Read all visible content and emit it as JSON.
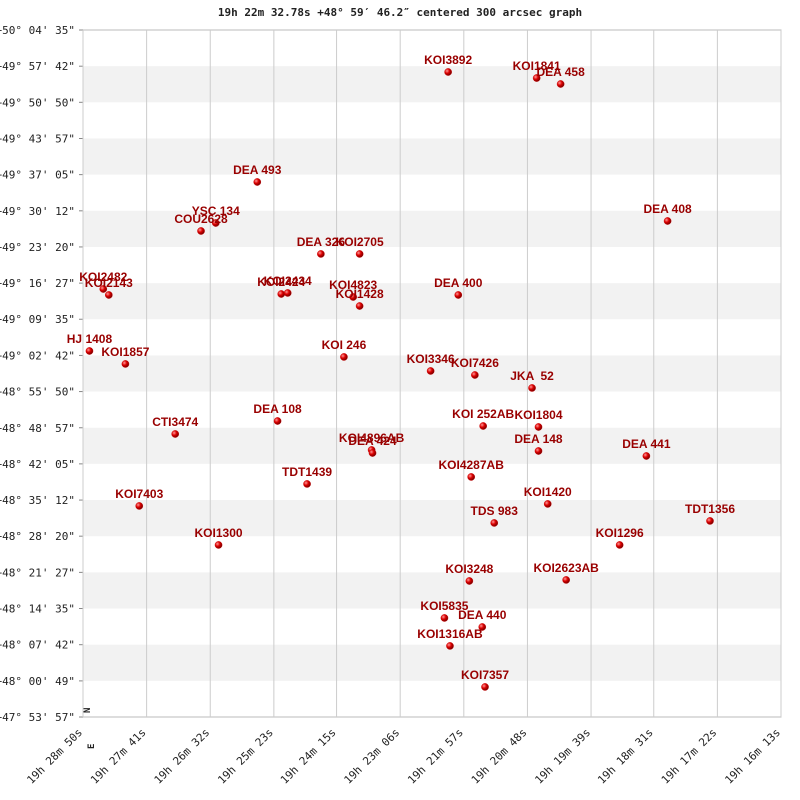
{
  "chart_data": {
    "type": "scatter",
    "title": "19h 22m 32.78s +48° 59′ 46.2″ centered 300 arcsec graph",
    "color": "#cc0000",
    "label_color": "#990000",
    "labels": [
      "KOI3892",
      "KOI1841",
      "DEA 458",
      "DEA 493",
      "YSC 134",
      "COU2628",
      "DEA 408",
      "DEA 326",
      "KOI2705",
      "KOI2482",
      "KOI2143",
      "KOI2424",
      "KOI2434",
      "KOI4823",
      "KOI1428",
      "DEA 400",
      "HJ 1408",
      "KOI1857",
      "KOI 246",
      "KOI3346",
      "KOI7426",
      "JKA  52",
      "DEA 108",
      "CTI3474",
      "KOI 252AB",
      "KOI1804",
      "KOI4896AB",
      "DEA 424",
      "DEA 148",
      "DEA 441",
      "TDT1439",
      "KOI4287AB",
      "KOI1420",
      "KOI7403",
      "TDS 983",
      "TDT1356",
      "KOI1300",
      "KOI1296",
      "KOI3248",
      "KOI2623AB",
      "KOI5835",
      "DEA 440",
      "KOI1316AB",
      "KOI7357"
    ],
    "x": [
      69334,
      69238,
      69212,
      69541,
      69586,
      69602,
      69096,
      69472,
      69430,
      69708,
      69702,
      69515,
      69508,
      69437,
      69430,
      69323,
      69723,
      69684,
      69447,
      69353,
      69305,
      69243,
      69519,
      69630,
      69296,
      69236,
      69417,
      69416,
      69236,
      69119,
      69487,
      69309,
      69226,
      69669,
      69284,
      69050,
      69583,
      69148,
      69311,
      69206,
      69338,
      69297,
      69332,
      69294
    ],
    "values": [
      179796,
      179727,
      179659,
      178541,
      178073,
      177982,
      178096,
      177720,
      177720,
      177320,
      177252,
      177263,
      177275,
      177229,
      177126,
      177252,
      176613,
      176465,
      176545,
      176385,
      176339,
      176191,
      175814,
      175666,
      175757,
      175746,
      175484,
      175449,
      175472,
      175415,
      175096,
      175176,
      174868,
      174845,
      174651,
      174674,
      174400,
      174400,
      173989,
      174001,
      173567,
      173464,
      173248,
      172780
    ],
    "xlim": [
      69730,
      68973
    ],
    "xticks": [
      {
        "value": 69730,
        "label": "19h 28m 50s"
      },
      {
        "value": 69661,
        "label": "19h 27m 41s"
      },
      {
        "value": 69592,
        "label": "19h 26m 32s"
      },
      {
        "value": 69523,
        "label": "19h 25m 23s"
      },
      {
        "value": 69455,
        "label": "19h 24m 15s"
      },
      {
        "value": 69386,
        "label": "19h 23m 06s"
      },
      {
        "value": 69317,
        "label": "19h 21m 57s"
      },
      {
        "value": 69248,
        "label": "19h 20m 48s"
      },
      {
        "value": 69179,
        "label": "19h 19m 39s"
      },
      {
        "value": 69111,
        "label": "19h 18m 31s"
      },
      {
        "value": 69042,
        "label": "19h 17m 22s"
      },
      {
        "value": 68973,
        "label": "19h 16m 13s"
      }
    ],
    "ylim": [
      172437,
      180275
    ],
    "yticks": [
      {
        "value": 180275,
        "label": "+50° 04' 35\""
      },
      {
        "value": 179862,
        "label": "+49° 57' 42\""
      },
      {
        "value": 179450,
        "label": "+49° 50' 50\""
      },
      {
        "value": 179037,
        "label": "+49° 43' 57\""
      },
      {
        "value": 178625,
        "label": "+49° 37' 05\""
      },
      {
        "value": 178212,
        "label": "+49° 30' 12\""
      },
      {
        "value": 177800,
        "label": "+49° 23' 20\""
      },
      {
        "value": 177387,
        "label": "+49° 16' 27\""
      },
      {
        "value": 176975,
        "label": "+49° 09' 35\""
      },
      {
        "value": 176562,
        "label": "+49° 02' 42\""
      },
      {
        "value": 176150,
        "label": "+48° 55' 50\""
      },
      {
        "value": 175737,
        "label": "+48° 48' 57\""
      },
      {
        "value": 175325,
        "label": "+48° 42' 05\""
      },
      {
        "value": 174912,
        "label": "+48° 35' 12\""
      },
      {
        "value": 174500,
        "label": "+48° 28' 20\""
      },
      {
        "value": 174087,
        "label": "+48° 21' 27\""
      },
      {
        "value": 173675,
        "label": "+48° 14' 35\""
      },
      {
        "value": 173262,
        "label": "+48° 07' 42\""
      },
      {
        "value": 172849,
        "label": "+48° 00' 49\""
      },
      {
        "value": 172437,
        "label": "+47° 53' 57\""
      }
    ],
    "grid": true,
    "compass": [
      "N",
      "E"
    ]
  }
}
